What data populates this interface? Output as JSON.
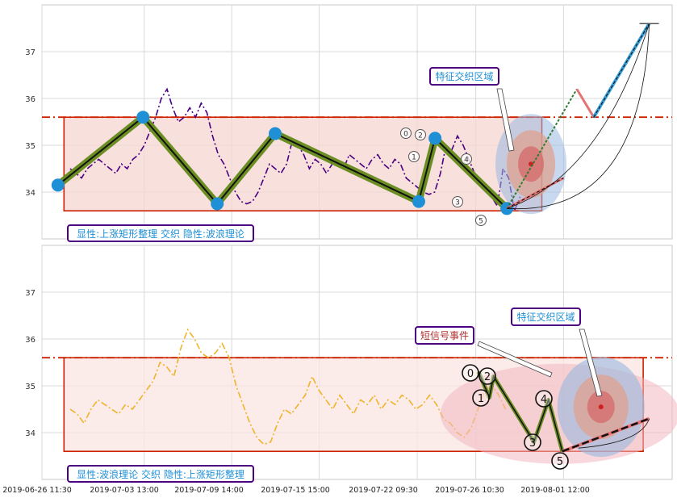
{
  "chart_data": [
    {
      "type": "line",
      "panel": "top",
      "ylim": [
        33.0,
        38.0
      ],
      "yticks": [
        34,
        35,
        36,
        37
      ],
      "grid": true,
      "colors": {
        "price": "#4b0082",
        "wave": "#6b8e23",
        "node": "#1f8fd6",
        "box_edge": "#cc2200",
        "box_fill": "#f6d5d0",
        "resistance": "#cc2200",
        "projection": "#3aa0d8",
        "projection_up": "#e57373"
      },
      "resistance_level": 35.6,
      "rectangle": {
        "x0": "2019-06-28",
        "x1": "2019-07-31",
        "y0": 33.6,
        "y1": 35.6
      },
      "price": [
        34.5,
        34.4,
        34.3,
        34.5,
        34.6,
        34.7,
        34.6,
        34.5,
        34.4,
        34.6,
        34.5,
        34.7,
        34.8,
        35.0,
        35.3,
        35.6,
        36.0,
        36.2,
        35.8,
        35.5,
        35.6,
        35.8,
        35.6,
        35.9,
        35.7,
        35.2,
        34.8,
        34.6,
        34.3,
        34.0,
        33.8,
        33.75,
        33.8,
        34.0,
        34.3,
        34.6,
        34.5,
        34.4,
        34.6,
        35.1,
        35.0,
        34.8,
        34.5,
        34.7,
        34.6,
        34.4,
        34.6,
        34.7,
        34.5,
        34.8,
        34.7,
        34.6,
        34.5,
        34.7,
        34.8,
        34.6,
        34.5,
        34.7,
        34.6,
        34.3,
        34.2,
        34.1,
        34.0,
        33.95,
        34.0,
        34.4,
        35.0,
        34.9,
        35.2,
        35.0,
        34.7,
        34.4,
        34.2,
        34.0,
        33.9,
        33.7,
        34.5,
        34.3,
        33.6,
        33.9
      ],
      "wave_points": [
        {
          "x": "2019-06-27 14:00",
          "y": 34.15
        },
        {
          "x": "2019-07-03 11:00",
          "y": 35.6
        },
        {
          "x": "2019-07-08 14:00",
          "y": 33.75
        },
        {
          "x": "2019-07-12 14:00",
          "y": 35.25
        },
        {
          "x": "2019-07-22 12:00",
          "y": 33.8
        },
        {
          "x": "2019-07-23 15:00",
          "y": 35.15
        },
        {
          "x": "2019-07-28 14:00",
          "y": 33.65
        }
      ],
      "wave_labels": [
        "0",
        "1",
        "2",
        "3",
        "4",
        "5"
      ],
      "projection": [
        {
          "x": "2019-07-28 14:00",
          "y": 33.65
        },
        {
          "x": "2019-08-02 10:00",
          "y": 36.2
        },
        {
          "x": "2019-08-03 14:00",
          "y": 35.6
        },
        {
          "x": "2019-08-07 10:00",
          "y": 37.6
        }
      ],
      "annotations": {
        "zone": "特征交织区域",
        "footer": "显性:上涨矩形整理 交织 隐性:波浪理论"
      }
    },
    {
      "type": "line",
      "panel": "bottom",
      "ylim": [
        33.0,
        38.0
      ],
      "yticks": [
        34,
        35,
        36,
        37
      ],
      "grid": true,
      "colors": {
        "price": "#f0b429",
        "wave": "#6b8e23",
        "box_edge": "#cc2200",
        "box_fill": "#f9e4e1",
        "resistance": "#cc2200"
      },
      "resistance_level": 35.6,
      "rectangle": {
        "x0": "2019-06-28",
        "x1": "2019-08-07",
        "y0": 33.6,
        "y1": 35.6
      },
      "price": [
        34.5,
        34.4,
        34.2,
        34.5,
        34.7,
        34.6,
        34.5,
        34.4,
        34.6,
        34.5,
        34.7,
        34.9,
        35.1,
        35.5,
        35.4,
        35.2,
        35.8,
        36.2,
        36.0,
        35.7,
        35.6,
        35.7,
        35.9,
        35.6,
        35.0,
        34.6,
        34.2,
        33.9,
        33.75,
        33.8,
        34.2,
        34.5,
        34.4,
        34.6,
        34.8,
        35.2,
        34.9,
        34.7,
        34.5,
        34.8,
        34.6,
        34.4,
        34.7,
        34.6,
        34.8,
        34.5,
        34.7,
        34.6,
        34.8,
        34.7,
        34.5,
        34.6,
        34.8,
        34.6,
        34.3,
        34.2,
        34.0,
        33.9,
        34.1,
        34.5,
        34.9,
        35.0,
        34.8,
        34.5
      ],
      "wave_labels": [
        "0",
        "1",
        "2",
        "3",
        "4",
        "5"
      ],
      "wave_points": [
        {
          "x": "2019-07-26 15:00",
          "y": 35.3
        },
        {
          "x": "2019-07-27 09:00",
          "y": 34.75
        },
        {
          "x": "2019-07-27 16:00",
          "y": 35.2
        },
        {
          "x": "2019-07-30 11:00",
          "y": 33.8
        },
        {
          "x": "2019-07-31 11:00",
          "y": 34.7
        },
        {
          "x": "2019-08-01 10:00",
          "y": 33.6
        }
      ],
      "projection_end": {
        "x": "2019-08-07 10:00",
        "y": 34.3
      },
      "annotations": {
        "zone": "特征交织区域",
        "signal": "短信号事件",
        "footer": "显性:波浪理论 交织 隐性:上涨矩形整理"
      }
    }
  ],
  "x_ticks": [
    "2019-06-26 11:30",
    "2019-07-03 13:00",
    "2019-07-09 14:00",
    "2019-07-15 15:00",
    "2019-07-22 09:30",
    "2019-07-26 10:30",
    "2019-08-01 12:00"
  ]
}
